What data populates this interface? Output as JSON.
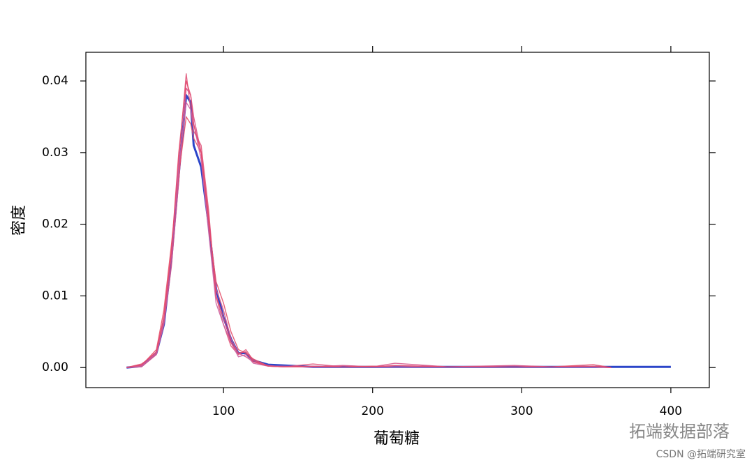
{
  "chart_data": {
    "type": "line",
    "xlabel": "葡萄糖",
    "ylabel": "密度",
    "x": [
      35,
      45,
      55,
      60,
      65,
      70,
      75,
      78,
      80,
      85,
      90,
      95,
      100,
      105,
      110,
      115,
      120,
      130,
      140,
      160,
      180,
      200,
      215,
      250,
      295,
      320,
      348,
      360,
      400
    ],
    "series": [
      {
        "color": "#2b45c9",
        "values": [
          0,
          0.0002,
          0.002,
          0.006,
          0.015,
          0.027,
          0.038,
          0.037,
          0.031,
          0.028,
          0.02,
          0.011,
          0.007,
          0.004,
          0.002,
          0.002,
          0.001,
          0.0004,
          0.0003,
          0.0001,
          0.0001,
          0.0001,
          0.0001,
          0.0001,
          0.0001,
          0.0001,
          0.0001,
          0.0001,
          0.0001
        ]
      },
      {
        "color": "#e0557a",
        "values": [
          0,
          0.0005,
          0.002,
          0.007,
          0.016,
          0.029,
          0.041,
          0.036,
          0.033,
          0.031,
          0.022,
          0.01,
          0.006,
          0.003,
          0.0018,
          0.0025,
          0.001,
          0.0002,
          0.0001,
          0.0005,
          0.0001,
          0.0001,
          0.0001,
          0.0001,
          0.0001,
          0.0001,
          0.0001,
          0,
          null
        ]
      },
      {
        "color": "#d8558a",
        "values": [
          0,
          0.0001,
          0.0018,
          0.006,
          0.014,
          0.026,
          0.039,
          0.038,
          0.035,
          0.03,
          0.021,
          0.011,
          0.008,
          0.004,
          0.002,
          0.0015,
          0.0008,
          0.0003,
          0.0001,
          0.0001,
          0.0003,
          0.0001,
          0.0006,
          0.0001,
          0.0003,
          0.0001,
          0.0001,
          0,
          null
        ]
      },
      {
        "color": "#e5506a",
        "values": [
          0,
          0.0003,
          0.0025,
          0.008,
          0.017,
          0.027,
          0.035,
          0.034,
          0.032,
          0.03,
          0.02,
          0.012,
          0.009,
          0.005,
          0.0025,
          0.002,
          0.0012,
          0.0002,
          0.0001,
          0.0001,
          0.0001,
          0.0002,
          0.0001,
          0.0001,
          0.0001,
          0.0001,
          0.0004,
          0,
          null
        ]
      },
      {
        "color": "#cc5fa0",
        "values": [
          0,
          0.0002,
          0.002,
          0.0065,
          0.0155,
          0.028,
          0.037,
          0.036,
          0.034,
          0.029,
          0.019,
          0.009,
          0.006,
          0.0035,
          0.0015,
          0.0018,
          0.0006,
          0.0002,
          0.0002,
          0.0001,
          0.0001,
          0.0001,
          0.0001,
          0.0001,
          0.0001,
          0.0001,
          0.0001,
          0,
          null
        ]
      },
      {
        "color": "#e2486e",
        "values": [
          0,
          0.0004,
          0.0022,
          0.007,
          0.016,
          0.03,
          0.04,
          0.038,
          0.034,
          0.03,
          0.021,
          0.01,
          0.007,
          0.0035,
          0.002,
          0.0022,
          0.0008,
          0.0002,
          0.0001,
          0.0002,
          0.0001,
          0.0001,
          0.0003,
          0.0001,
          0.0001,
          0.0001,
          0.0002,
          0,
          null
        ]
      }
    ],
    "xlim": [
      7.7,
      425.8
    ],
    "xticks": [
      100,
      200,
      300,
      400
    ],
    "ylim": [
      -0.0028,
      0.044
    ],
    "yticks": [
      {
        "value": 0,
        "label": "0.00"
      },
      0.01,
      0.02,
      0.03,
      0.04
    ],
    "watermark": "拓端数据部落",
    "credit": "CSDN @拓端研究室"
  }
}
